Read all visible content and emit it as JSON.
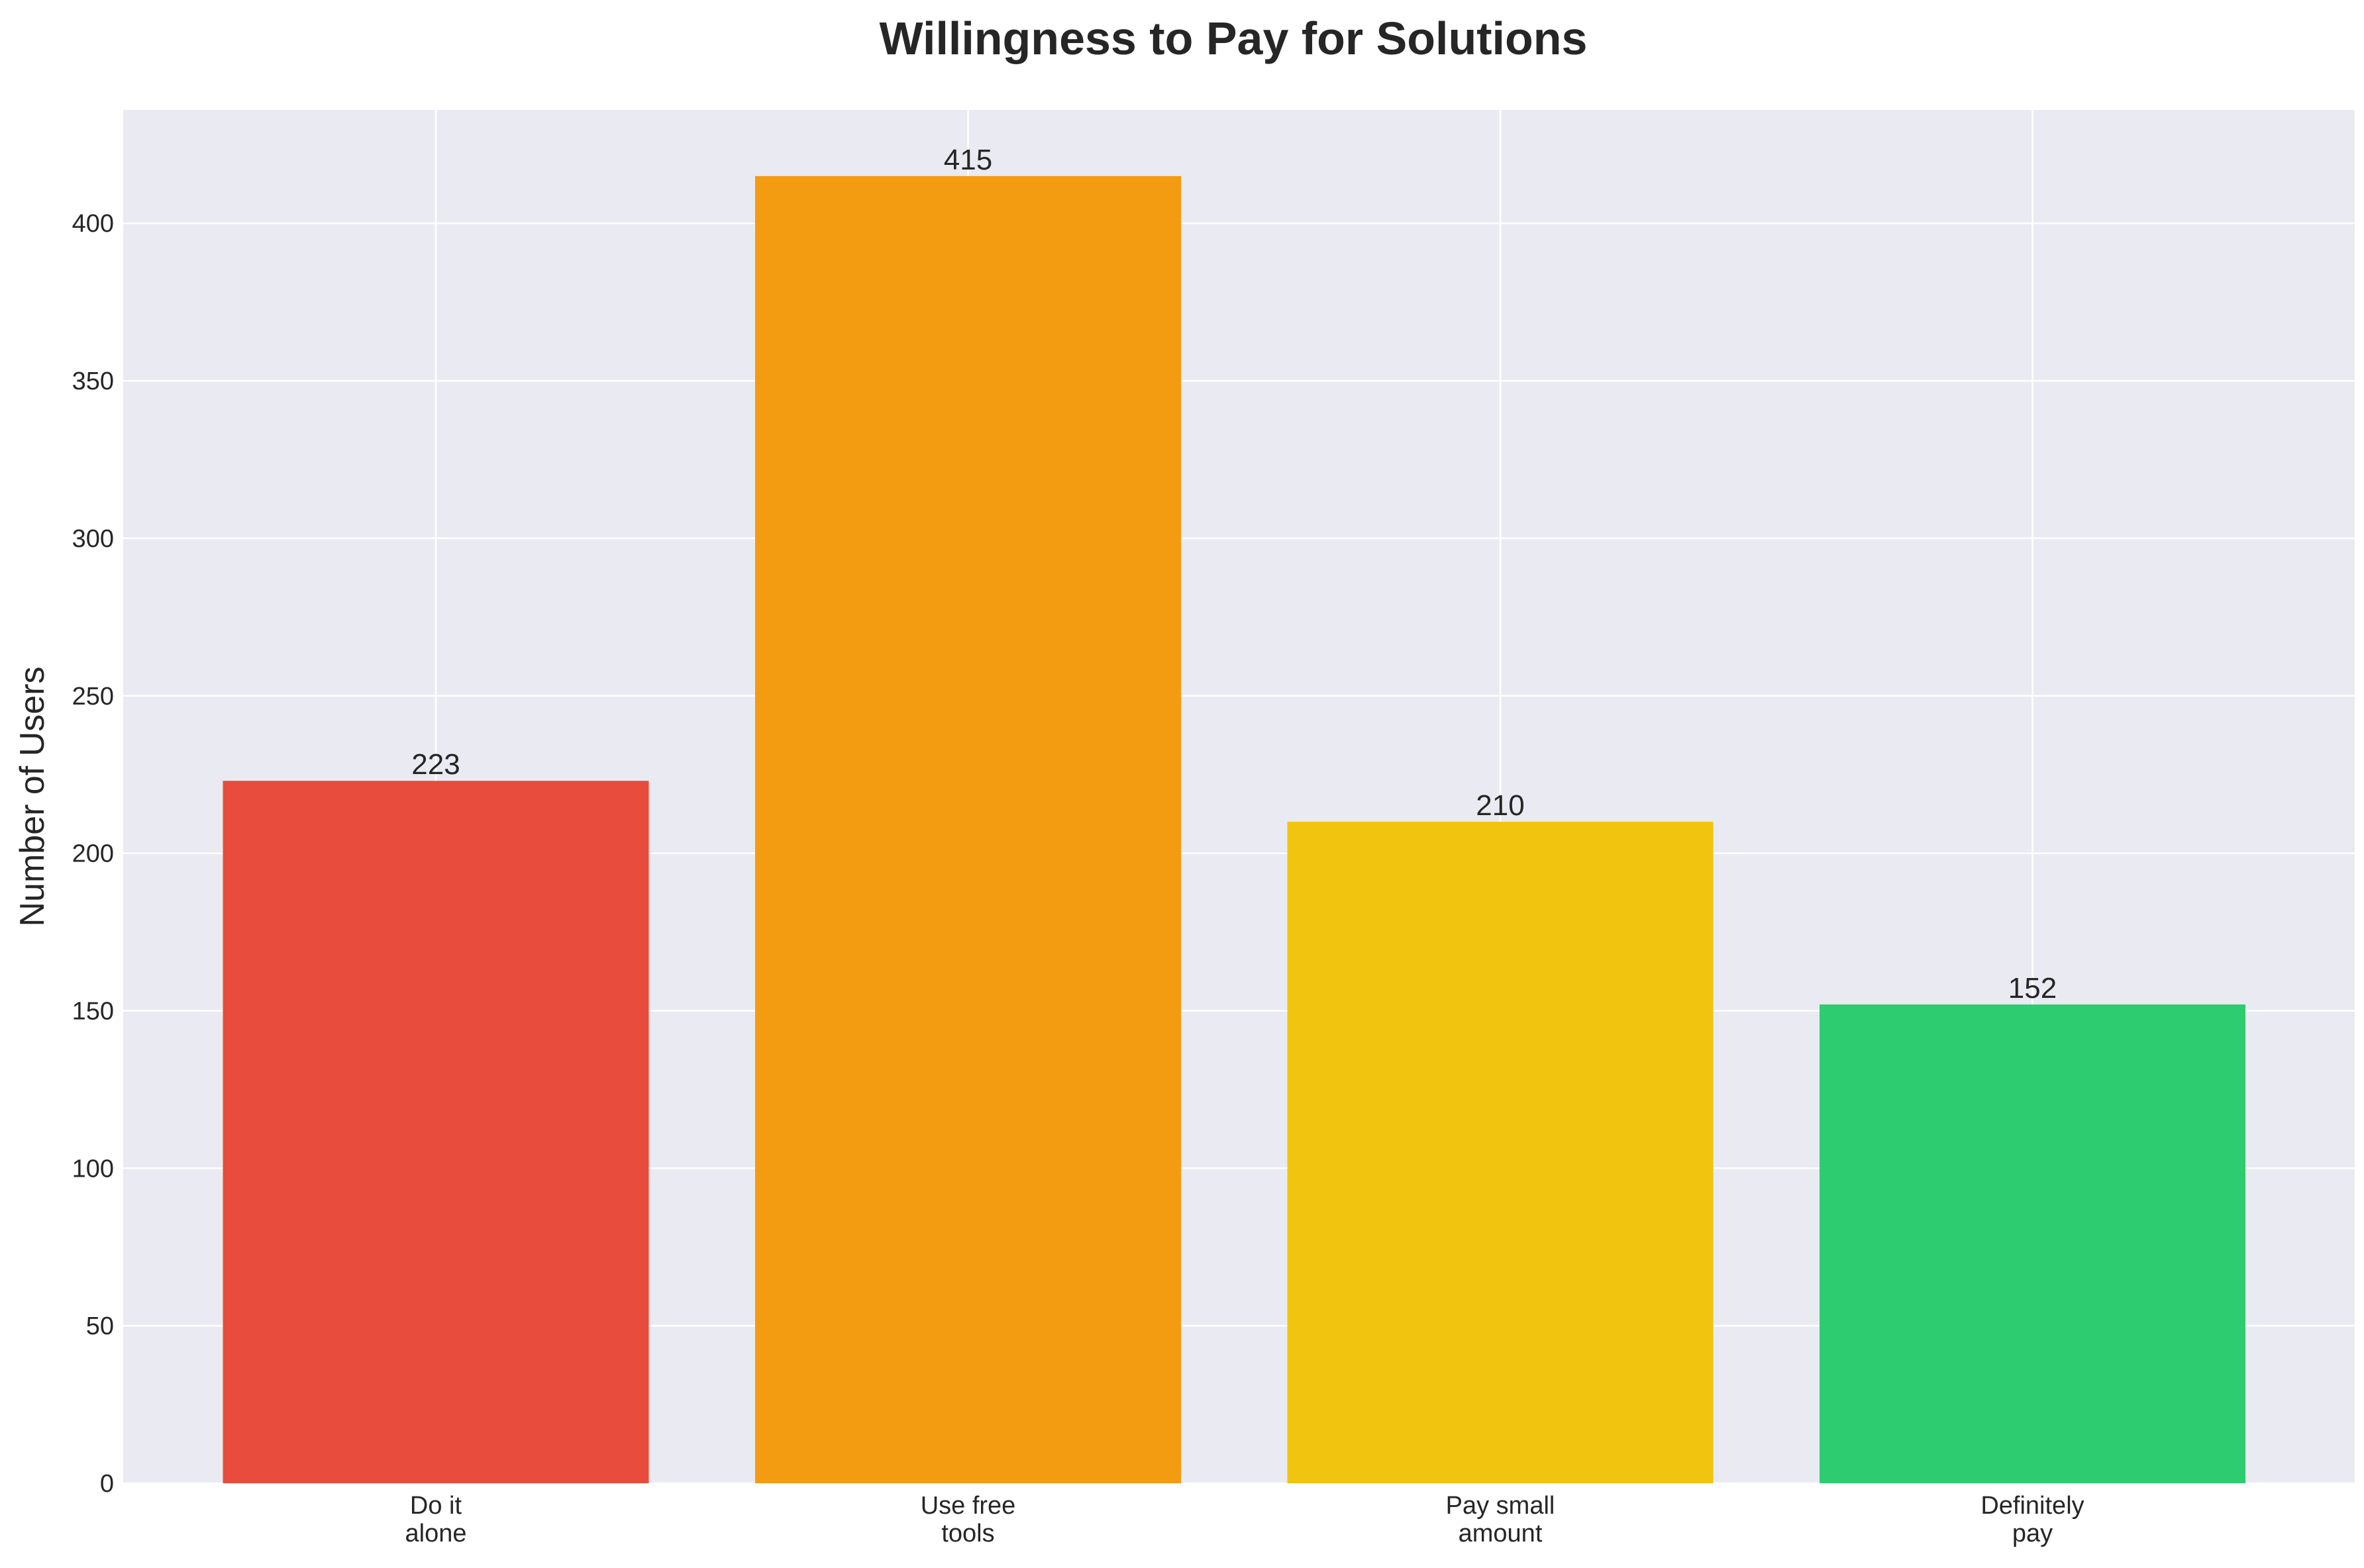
{
  "chart_data": {
    "type": "bar",
    "title": "Willingness to Pay for Solutions",
    "xlabel": "",
    "ylabel": "Number of Users",
    "categories": [
      "Do it\nalone",
      "Use free\ntools",
      "Pay small\namount",
      "Definitely\npay"
    ],
    "values": [
      223,
      415,
      210,
      152
    ],
    "data_labels": [
      "223",
      "415",
      "210",
      "152"
    ],
    "colors": [
      "#e74c3c",
      "#f39c12",
      "#f1c40f",
      "#2ecc71"
    ],
    "ylim": [
      0,
      436
    ],
    "yticks": [
      0,
      50,
      100,
      150,
      200,
      250,
      300,
      350,
      400
    ],
    "grid": true,
    "background_color": "#eaeaf2",
    "grid_color": "#ffffff"
  }
}
